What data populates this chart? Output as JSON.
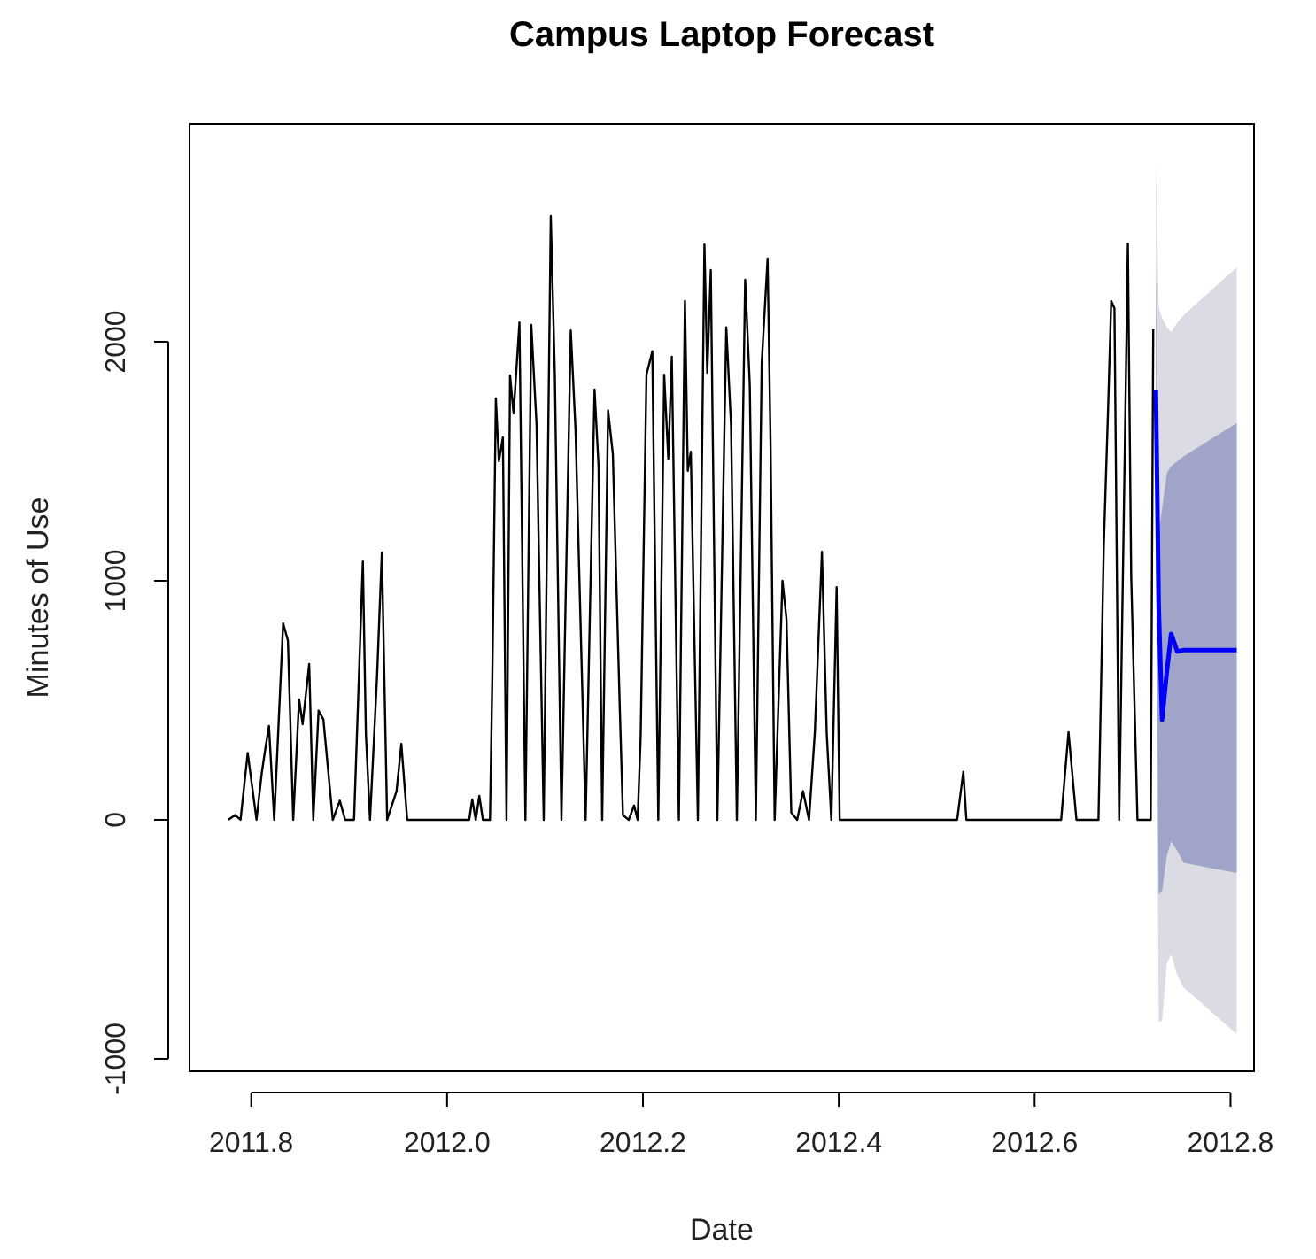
{
  "chart_data": {
    "type": "line",
    "title": "Campus Laptop Forecast",
    "xlabel": "Date",
    "ylabel": "Minutes of Use",
    "xlim": [
      2011.737,
      2012.824
    ],
    "ylim": [
      -1052,
      2911
    ],
    "xticks": [
      2011.8,
      {
        "value": 2012,
        "label": "2012.0"
      },
      2012.2,
      2012.4,
      2012.6,
      2012.8
    ],
    "yticks": [
      -1000,
      0,
      1000,
      2000
    ],
    "grid": false,
    "series": [
      {
        "color": "#000000",
        "x": [
          2011.7765,
          2011.7837,
          2011.7891,
          2011.7964,
          2011.8054,
          2011.8109,
          2011.8145,
          2011.8181,
          2011.8235,
          2011.8326,
          2011.8375,
          2011.8429,
          2011.8489,
          2011.8525,
          2011.8592,
          2011.8634,
          2011.8688,
          2011.8737,
          2011.8833,
          2011.8905,
          2011.8959,
          2011.905,
          2011.914,
          2011.9171,
          2011.9213,
          2011.9285,
          2011.9334,
          2011.9388,
          2011.9484,
          2011.9533,
          2011.9593,
          2012.0226,
          2012.0257,
          2012.0293,
          2012.0329,
          2012.0366,
          2012.0438,
          2012.0462,
          2012.0498,
          2012.0529,
          2012.057,
          2012.0607,
          2012.0643,
          2012.0679,
          2012.0739,
          2012.08,
          2012.086,
          2012.0914,
          2012.0987,
          2012.1059,
          2012.11,
          2012.1168,
          2012.1263,
          2012.1312,
          2012.1415,
          2012.1506,
          2012.1547,
          2012.1584,
          2012.1644,
          2012.1693,
          2012.1765,
          2012.1796,
          2012.1855,
          2012.191,
          2012.1946,
          2012.1977,
          2012.2036,
          2012.2096,
          2012.2157,
          2012.2217,
          2012.2259,
          2012.2295,
          2012.2367,
          2012.2429,
          2012.2458,
          2012.2489,
          2012.2561,
          2012.2628,
          2012.2657,
          2012.2693,
          2012.276,
          2012.2851,
          2012.29,
          2012.2959,
          2012.3044,
          2012.3091,
          2012.3153,
          2012.3213,
          2012.3273,
          2012.3303,
          2012.3345,
          2012.3425,
          2012.3466,
          2012.3515,
          2012.3575,
          2012.3635,
          2012.3696,
          2012.3756,
          2012.3828,
          2012.3877,
          2012.3924,
          2012.3978,
          2012.4009,
          2012.5209,
          2012.5272,
          2012.5303,
          2012.6271,
          2012.6346,
          2012.6427,
          2012.6652,
          2012.6706,
          2012.6751,
          2012.6782,
          2012.6815,
          2012.6863,
          2012.6923,
          2012.6952,
          2012.6986,
          2012.705,
          2012.7185,
          2012.7211
        ],
        "values": [
          0,
          20,
          0,
          280,
          0,
          200,
          300,
          393,
          0,
          822,
          750,
          0,
          504,
          400,
          652,
          0,
          457,
          420,
          0,
          80,
          0,
          0,
          1081,
          360,
          0,
          600,
          1119,
          0,
          120,
          318,
          0,
          0,
          85,
          0,
          100,
          0,
          0,
          600,
          1763,
          1500,
          1600,
          0,
          1859,
          1700,
          2081,
          0,
          2070,
          1650,
          0,
          2526,
          1870,
          0,
          2047,
          1630,
          0,
          1800,
          1480,
          0,
          1713,
          1530,
          450,
          20,
          0,
          60,
          0,
          350,
          1862,
          1960,
          0,
          1862,
          1510,
          1937,
          0,
          2170,
          1460,
          1540,
          0,
          2407,
          1870,
          2300,
          0,
          2060,
          1650,
          0,
          2259,
          1820,
          0,
          1910,
          2348,
          1580,
          0,
          1000,
          840,
          30,
          0,
          120,
          0,
          370,
          1121,
          360,
          0,
          973,
          0,
          0,
          201,
          0,
          0,
          367,
          0,
          0,
          1148,
          1733,
          2170,
          2140,
          0,
          1607,
          2410,
          1020,
          0,
          0,
          2052
        ]
      },
      {
        "color": "#0000ff",
        "x": [
          2012.7238,
          2012.7267,
          2012.7301,
          2012.735,
          2012.7394,
          2012.7457,
          2012.752,
          2012.8063
        ],
        "values": [
          null,
          null,
          null,
          null,
          null,
          null,
          null,
          null
        ],
        "upper": [
          2755,
          2140,
          2100,
          2060,
          2040,
          2080,
          2110,
          2311
        ],
        "lower": [
          960,
          -845,
          -840,
          -600,
          -563,
          -650,
          -700,
          -896
        ]
      },
      {
        "color": "#0000ff",
        "x": [
          2012.7238,
          2012.7267,
          2012.7301,
          2012.735,
          2012.7394,
          2012.7457,
          2012.752,
          2012.8063
        ],
        "values": [
          1800,
          890,
          418,
          620,
          778,
          704,
          710,
          710
        ],
        "upper": [
          2350,
          1200,
          1300,
          1450,
          1480,
          1500,
          1520,
          1660
        ],
        "lower": [
          1250,
          -310,
          -300,
          -150,
          -90,
          -130,
          -180,
          -222
        ]
      }
    ]
  }
}
